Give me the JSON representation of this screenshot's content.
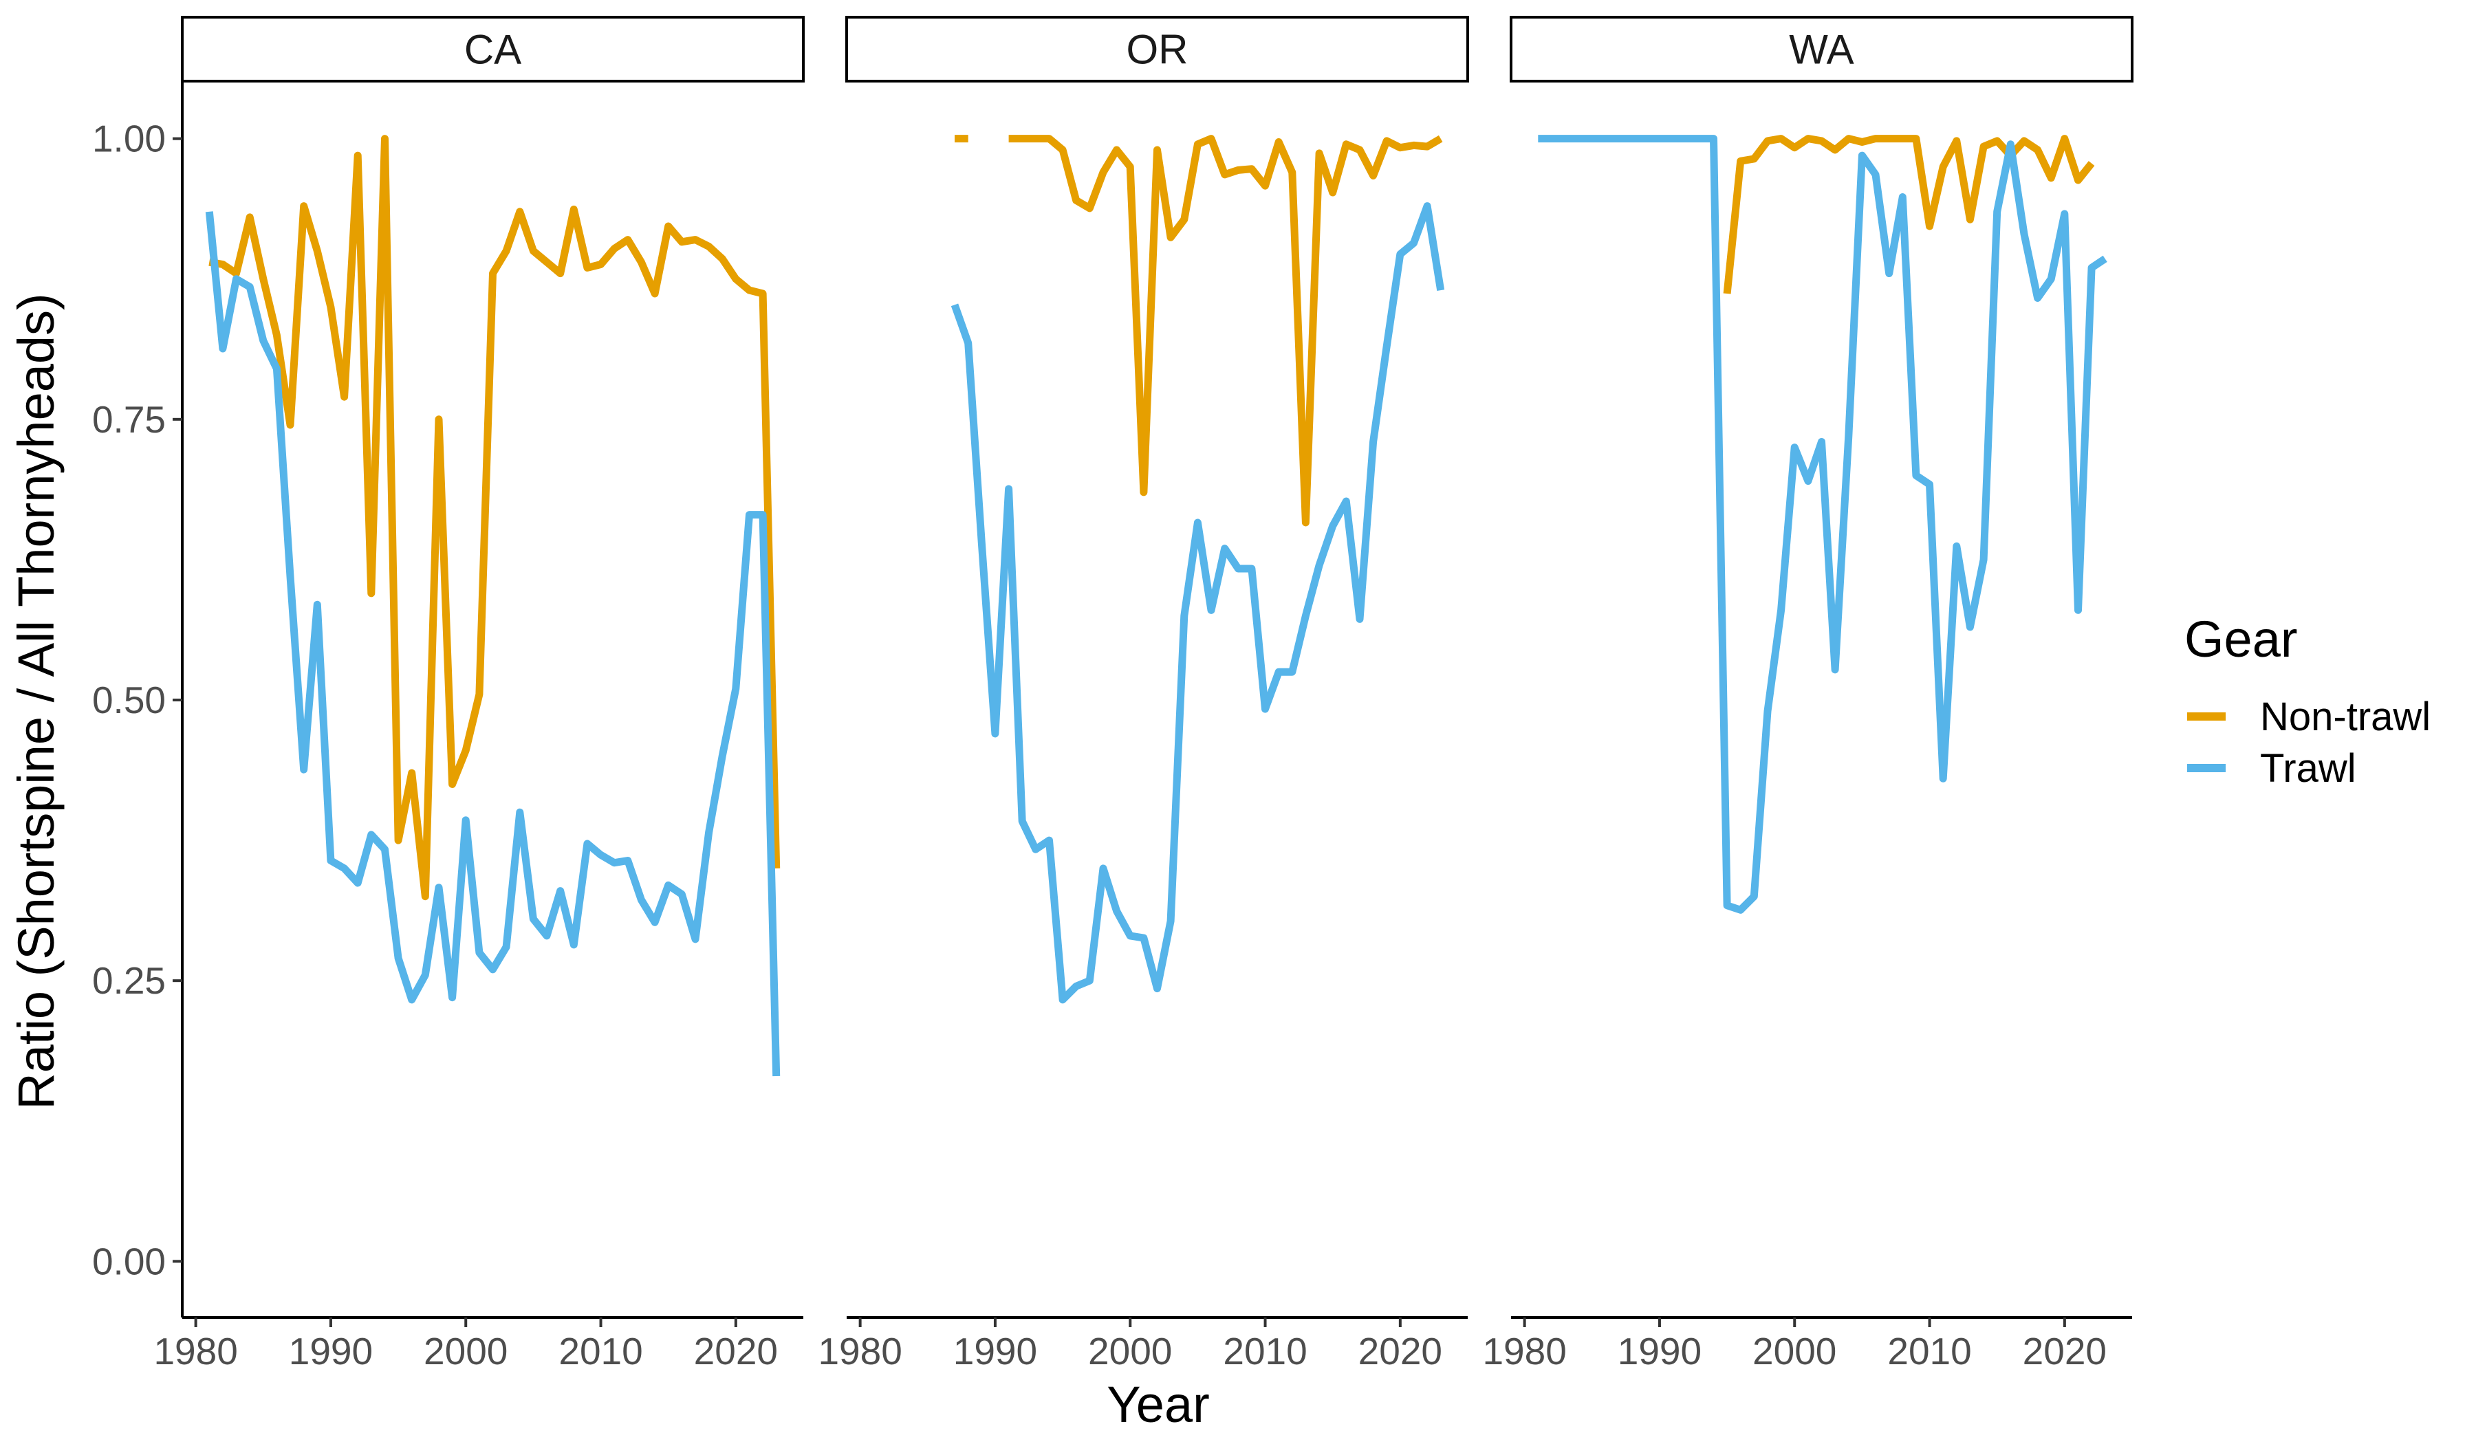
{
  "chart_data": {
    "type": "line",
    "xlabel": "Year",
    "ylabel": "Ratio (Shortspine / All Thornyheads)",
    "xlim": [
      1979,
      2025
    ],
    "ylim": [
      -0.05,
      1.05
    ],
    "x_ticks": [
      1980,
      1990,
      2000,
      2010,
      2020
    ],
    "y_ticks": [
      0,
      0.25,
      0.5,
      0.75,
      1
    ],
    "y_tick_labels": [
      "0.00",
      "0.25",
      "0.50",
      "0.75",
      "1.00"
    ],
    "grid": false,
    "legend": {
      "title": "Gear",
      "position": "right",
      "entries": [
        {
          "name": "Non-trawl",
          "color": "#E69F00"
        },
        {
          "name": "Trawl",
          "color": "#56B4E9"
        }
      ]
    },
    "panels": [
      {
        "strip": "CA",
        "series": [
          {
            "name": "Non-trawl",
            "color": "#E69F00",
            "x": [
              1981,
              1982,
              1983,
              1984,
              1985,
              1986,
              1987,
              1988,
              1989,
              1990,
              1991,
              1992,
              1993,
              1994,
              1995,
              1996,
              1997,
              1998,
              1999,
              2000,
              2001,
              2002,
              2003,
              2004,
              2005,
              2006,
              2007,
              2008,
              2009,
              2010,
              2011,
              2012,
              2013,
              2014,
              2015,
              2016,
              2017,
              2018,
              2019,
              2020,
              2021,
              2022,
              2023
            ],
            "y": [
              0.89,
              0.888,
              0.88,
              0.93,
              0.875,
              0.825,
              0.745,
              0.94,
              0.9,
              0.85,
              0.77,
              0.985,
              0.595,
              1.0,
              0.375,
              0.435,
              0.325,
              0.75,
              0.425,
              0.455,
              0.505,
              0.88,
              0.9,
              0.935,
              0.9,
              0.89,
              0.88,
              0.937,
              0.885,
              0.888,
              0.902,
              0.91,
              0.89,
              0.862,
              0.922,
              0.908,
              0.91,
              0.904,
              0.893,
              0.875,
              0.865,
              0.862,
              0.35
            ]
          },
          {
            "name": "Trawl",
            "color": "#56B4E9",
            "x": [
              1981,
              1982,
              1983,
              1984,
              1985,
              1986,
              1987,
              1988,
              1989,
              1990,
              1991,
              1992,
              1993,
              1994,
              1995,
              1996,
              1997,
              1998,
              1999,
              2000,
              2001,
              2002,
              2003,
              2004,
              2005,
              2006,
              2007,
              2008,
              2009,
              2010,
              2011,
              2012,
              2013,
              2014,
              2015,
              2016,
              2017,
              2018,
              2019,
              2020,
              2021,
              2022,
              2023
            ],
            "y": [
              0.935,
              0.813,
              0.875,
              0.868,
              0.82,
              0.795,
              0.61,
              0.438,
              0.585,
              0.357,
              0.35,
              0.337,
              0.38,
              0.367,
              0.27,
              0.233,
              0.255,
              0.333,
              0.235,
              0.393,
              0.275,
              0.26,
              0.28,
              0.4,
              0.305,
              0.29,
              0.33,
              0.282,
              0.372,
              0.362,
              0.355,
              0.357,
              0.322,
              0.302,
              0.335,
              0.327,
              0.287,
              0.382,
              0.45,
              0.51,
              0.665,
              0.665,
              0.165
            ]
          }
        ]
      },
      {
        "strip": "OR",
        "series": [
          {
            "name": "Non-trawl",
            "color": "#E69F00",
            "x": [
              1987,
              1988,
              1989,
              1990,
              1991,
              1992,
              1993,
              1994,
              1995,
              1996,
              1997,
              1998,
              1999,
              2000,
              2001,
              2002,
              2003,
              2004,
              2005,
              2006,
              2007,
              2008,
              2009,
              2010,
              2011,
              2012,
              2013,
              2014,
              2015,
              2016,
              2017,
              2018,
              2019,
              2020,
              2021,
              2022,
              2023
            ],
            "y": [
              1.0,
              1.0,
              null,
              null,
              1.0,
              1.0,
              1.0,
              1.0,
              0.99,
              0.945,
              0.938,
              0.97,
              0.99,
              0.975,
              0.685,
              0.99,
              0.912,
              0.928,
              0.995,
              1.0,
              0.968,
              0.972,
              0.973,
              0.958,
              0.997,
              0.97,
              0.658,
              0.987,
              0.952,
              0.995,
              0.99,
              0.967,
              0.998,
              0.992,
              0.994,
              0.993,
              1.0
            ]
          },
          {
            "name": "Trawl",
            "color": "#56B4E9",
            "x": [
              1987,
              1988,
              1989,
              1990,
              1991,
              1992,
              1993,
              1994,
              1995,
              1996,
              1997,
              1998,
              1999,
              2000,
              2001,
              2002,
              2003,
              2004,
              2005,
              2006,
              2007,
              2008,
              2009,
              2010,
              2011,
              2012,
              2013,
              2014,
              2015,
              2016,
              2017,
              2018,
              2019,
              2020,
              2021,
              2022,
              2023
            ],
            "y": [
              0.852,
              0.818,
              0.64,
              0.47,
              0.688,
              0.392,
              0.367,
              0.375,
              0.233,
              0.245,
              0.25,
              0.35,
              0.312,
              0.29,
              0.288,
              0.243,
              0.303,
              0.575,
              0.658,
              0.58,
              0.635,
              0.617,
              0.617,
              0.492,
              0.525,
              0.525,
              0.575,
              0.62,
              0.655,
              0.677,
              0.572,
              0.73,
              0.815,
              0.897,
              0.907,
              0.94,
              0.865
            ]
          }
        ]
      },
      {
        "strip": "WA",
        "series": [
          {
            "name": "Non-trawl",
            "color": "#E69F00",
            "x": [
              1995,
              1996,
              1997,
              1998,
              1999,
              2000,
              2001,
              2002,
              2003,
              2004,
              2005,
              2006,
              2007,
              2008,
              2009,
              2010,
              2011,
              2012,
              2013,
              2014,
              2015,
              2016,
              2017,
              2018,
              2019,
              2020,
              2021,
              2022
            ],
            "y": [
              0.862,
              0.98,
              0.982,
              0.998,
              1.0,
              0.992,
              1.0,
              0.998,
              0.99,
              1.0,
              0.997,
              1.0,
              1.0,
              1.0,
              1.0,
              0.922,
              0.975,
              0.998,
              0.928,
              0.993,
              0.998,
              0.985,
              0.998,
              0.99,
              0.965,
              1.0,
              0.963,
              0.978
            ]
          },
          {
            "name": "Trawl",
            "color": "#56B4E9",
            "x": [
              1981,
              1982,
              1983,
              1984,
              1985,
              1986,
              1987,
              1988,
              1989,
              1990,
              1991,
              1992,
              1993,
              1994,
              1995,
              1996,
              1997,
              1998,
              1999,
              2000,
              2001,
              2002,
              2003,
              2004,
              2005,
              2006,
              2007,
              2008,
              2009,
              2010,
              2011,
              2012,
              2013,
              2014,
              2015,
              2016,
              2017,
              2018,
              2019,
              2020,
              2021,
              2022,
              2023
            ],
            "y": [
              1.0,
              1.0,
              1.0,
              1.0,
              1.0,
              1.0,
              1.0,
              1.0,
              1.0,
              1.0,
              1.0,
              1.0,
              1.0,
              1.0,
              0.317,
              0.313,
              0.325,
              0.49,
              0.58,
              0.725,
              0.695,
              0.73,
              0.527,
              0.735,
              0.985,
              0.968,
              0.88,
              0.948,
              0.7,
              0.692,
              0.43,
              0.637,
              0.565,
              0.625,
              0.935,
              0.995,
              0.915,
              0.858,
              0.875,
              0.933,
              0.58,
              0.885,
              0.893
            ]
          }
        ]
      }
    ]
  }
}
